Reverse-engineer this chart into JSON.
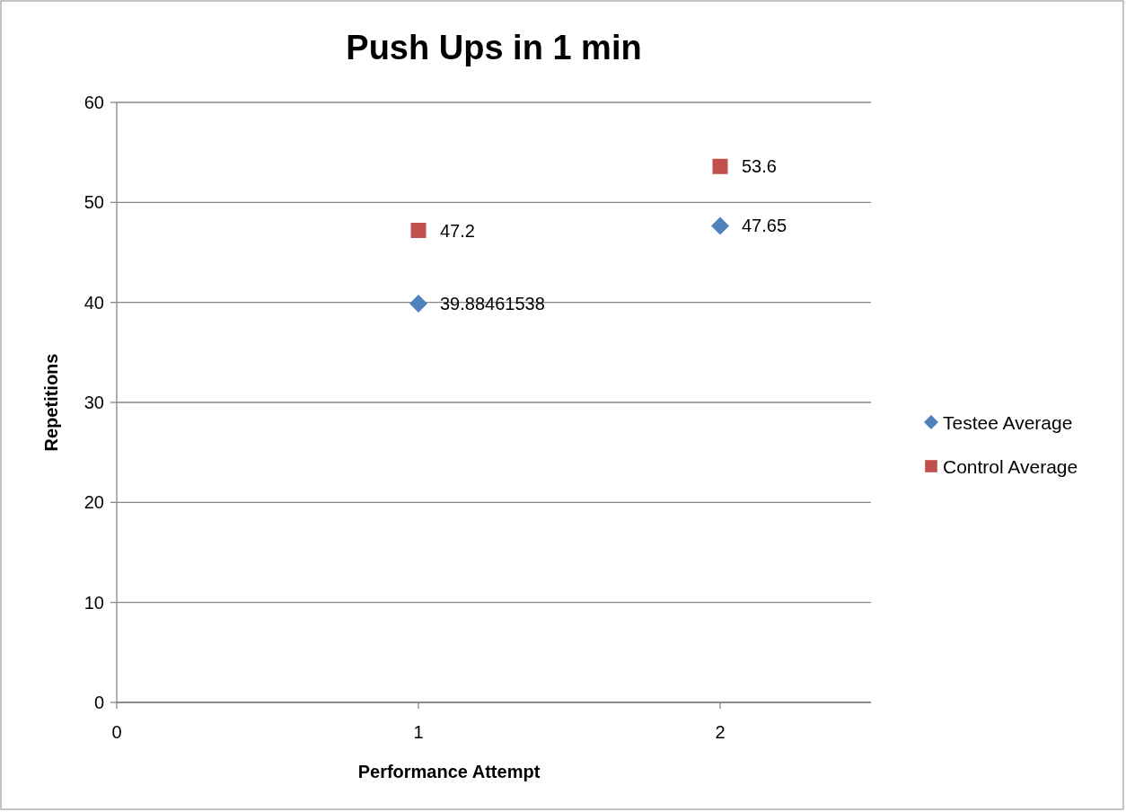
{
  "chart_data": {
    "type": "scatter",
    "title": "Push Ups in 1 min",
    "xlabel": "Performance Attempt",
    "ylabel": "Repetitions",
    "x": [
      1,
      2
    ],
    "xlim": [
      0,
      2.5
    ],
    "xticks": [
      0,
      1,
      2
    ],
    "ylim": [
      0,
      60
    ],
    "yticks": [
      0,
      10,
      20,
      30,
      40,
      50,
      60
    ],
    "grid": "y",
    "legend": "right",
    "data_labels": true,
    "series": [
      {
        "name": "Testee Average",
        "color": "#4f81bd",
        "marker": "diamond",
        "values": [
          39.88461538,
          47.65
        ]
      },
      {
        "name": "Control Average",
        "color": "#c0504d",
        "marker": "square",
        "values": [
          47.2,
          53.6
        ]
      }
    ]
  }
}
